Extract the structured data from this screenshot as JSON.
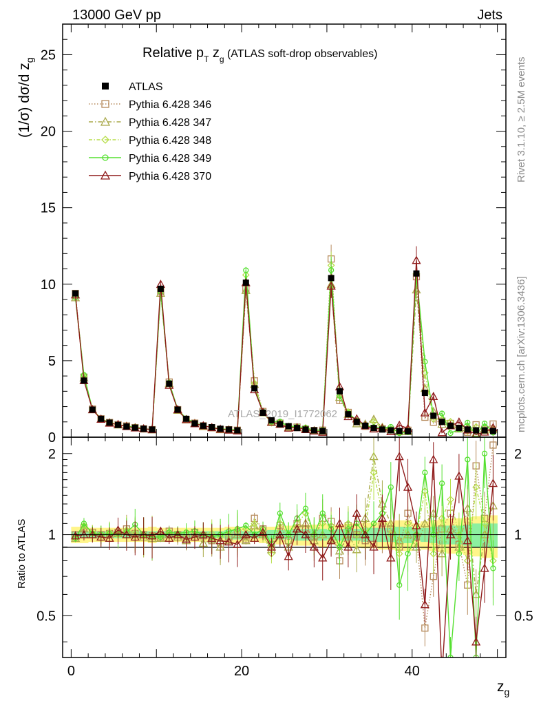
{
  "chart_data": {
    "type": "line",
    "header_left": "13000 GeV pp",
    "header_right": "Jets",
    "title": {
      "pre": "Relative p",
      "sub_t": "T",
      "mid": " z",
      "sub_g": "g",
      "post": " (ATLAS soft-drop observables)"
    },
    "ylabel": {
      "main": "(1/σ) dσ/d z",
      "sub": "g"
    },
    "ylabel_ratio": "Ratio to ATLAS",
    "xlabel": {
      "main": "z",
      "sub": "g"
    },
    "watermark": "ATLAS_2019_I1772062",
    "side_text_top": "Rivet 3.1.10, ≥ 2.5M events",
    "side_text_bottom": "mcplots.cern.ch [arXiv:1306.3436]",
    "xlim": [
      -1,
      51
    ],
    "ylim_main": [
      0,
      27
    ],
    "ylim_ratio": [
      0.35,
      2.3
    ],
    "x_ticks": [
      "0",
      "20",
      "40"
    ],
    "y_ticks_main": [
      "0",
      "5",
      "10",
      "15",
      "20",
      "25"
    ],
    "y_ticks_ratio": [
      "0.5",
      "1",
      "2"
    ],
    "data": {
      "name": "ATLAS",
      "x": [
        0.5,
        1.5,
        2.5,
        3.5,
        4.5,
        5.5,
        6.5,
        7.5,
        8.5,
        9.5,
        10.5,
        11.5,
        12.5,
        13.5,
        14.5,
        15.5,
        16.5,
        17.5,
        18.5,
        19.5,
        20.5,
        21.5,
        22.5,
        23.5,
        24.5,
        25.5,
        26.5,
        27.5,
        28.5,
        29.5,
        30.5,
        31.5,
        32.5,
        33.5,
        34.5,
        35.5,
        36.5,
        37.5,
        38.5,
        39.5,
        40.5,
        41.5,
        42.5,
        43.5,
        44.5,
        45.5,
        46.5,
        47.5,
        48.5,
        49.5
      ],
      "y": [
        9.4,
        3.7,
        1.8,
        1.2,
        0.95,
        0.8,
        0.7,
        0.62,
        0.55,
        0.5,
        9.7,
        3.5,
        1.8,
        1.2,
        0.9,
        0.75,
        0.65,
        0.55,
        0.5,
        0.45,
        10.1,
        3.2,
        1.6,
        1.1,
        0.85,
        0.72,
        0.6,
        0.5,
        0.45,
        0.4,
        10.4,
        3.0,
        1.5,
        1.0,
        0.75,
        0.6,
        0.5,
        0.45,
        0.4,
        0.38,
        10.7,
        2.9,
        1.4,
        1.0,
        0.75,
        0.6,
        0.5,
        0.45,
        0.45,
        0.4
      ],
      "band_stat": [
        0.03,
        0.03,
        0.03,
        0.03,
        0.03,
        0.03,
        0.03,
        0.03,
        0.03,
        0.03,
        0.03,
        0.03,
        0.03,
        0.03,
        0.03,
        0.03,
        0.03,
        0.03,
        0.04,
        0.04,
        0.03,
        0.03,
        0.03,
        0.04,
        0.04,
        0.04,
        0.05,
        0.05,
        0.05,
        0.05,
        0.04,
        0.05,
        0.05,
        0.05,
        0.06,
        0.06,
        0.06,
        0.06,
        0.07,
        0.07,
        0.05,
        0.06,
        0.07,
        0.08,
        0.08,
        0.08,
        0.09,
        0.1,
        0.1,
        0.1
      ],
      "band_tot": [
        0.07,
        0.07,
        0.06,
        0.06,
        0.06,
        0.06,
        0.06,
        0.06,
        0.06,
        0.07,
        0.06,
        0.06,
        0.06,
        0.06,
        0.06,
        0.06,
        0.06,
        0.06,
        0.07,
        0.07,
        0.06,
        0.06,
        0.07,
        0.07,
        0.08,
        0.08,
        0.09,
        0.09,
        0.09,
        0.1,
        0.08,
        0.09,
        0.1,
        0.1,
        0.11,
        0.11,
        0.12,
        0.12,
        0.13,
        0.13,
        0.1,
        0.12,
        0.13,
        0.14,
        0.15,
        0.15,
        0.16,
        0.17,
        0.18,
        0.18
      ]
    },
    "series": [
      {
        "name": "Pythia 6.428 346",
        "color": "#b5895a",
        "dash": "1.5,2.5",
        "marker": "square",
        "ratio": [
          1.0,
          1.06,
          1.02,
          1.0,
          1.01,
          1.02,
          1.05,
          1.01,
          1.0,
          0.99,
          0.98,
          1.03,
          1.0,
          0.97,
          1.02,
          0.99,
          0.95,
          0.92,
          0.98,
          1.02,
          0.96,
          1.15,
          1.05,
          0.92,
          1.08,
          0.95,
          1.1,
          1.05,
          0.98,
          1.15,
          1.12,
          0.8,
          1.08,
          1.0,
          0.95,
          0.92,
          1.1,
          1.05,
          0.9,
          1.2,
          0.98,
          0.45,
          0.7,
          1.05,
          1.2,
          0.92,
          0.65,
          1.8,
          1.15,
          2.15
        ]
      },
      {
        "name": "Pythia 6.428 347",
        "color": "#a9a84a",
        "dash": "6,3,1.5,3",
        "marker": "triangle",
        "ratio": [
          0.97,
          1.05,
          1.0,
          0.98,
          1.0,
          1.01,
          1.03,
          1.0,
          0.98,
          0.97,
          0.97,
          1.0,
          0.98,
          0.95,
          1.0,
          0.93,
          0.96,
          0.9,
          0.95,
          1.0,
          0.95,
          1.08,
          1.0,
          0.88,
          1.0,
          0.9,
          1.05,
          1.1,
          0.95,
          1.0,
          0.96,
          0.87,
          1.0,
          0.88,
          1.15,
          1.95,
          1.3,
          1.1,
          0.95,
          1.0,
          0.9,
          1.1,
          1.2,
          0.85,
          1.05,
          0.9,
          1.25,
          0.6,
          1.0,
          1.28
        ]
      },
      {
        "name": "Pythia 6.428 348",
        "color": "#b7de4a",
        "dash": "5,2.5,1.5,2.5",
        "marker": "diamond",
        "ratio": [
          0.98,
          1.08,
          1.02,
          1.0,
          1.02,
          1.0,
          1.04,
          1.02,
          0.99,
          1.0,
          1.0,
          1.02,
          1.0,
          1.0,
          1.03,
          1.0,
          1.01,
          0.98,
          1.0,
          1.04,
          1.05,
          1.1,
          1.0,
          0.85,
          1.1,
          1.0,
          1.1,
          1.2,
          1.0,
          1.1,
          1.08,
          0.9,
          1.1,
          1.0,
          1.05,
          1.7,
          1.2,
          1.0,
          0.85,
          1.1,
          1.0,
          1.45,
          0.85,
          1.15,
          1.35,
          1.0,
          0.8,
          1.5,
          1.1,
          0.8
        ]
      },
      {
        "name": "Pythia 6.428 349",
        "color": "#55e030",
        "dash": "",
        "marker": "circle",
        "ratio": [
          0.97,
          1.1,
          1.01,
          1.0,
          1.01,
          1.01,
          1.02,
          1.09,
          1.0,
          0.98,
          0.98,
          1.02,
          1.01,
          1.02,
          1.03,
          1.0,
          0.98,
          1.0,
          1.03,
          1.05,
          1.08,
          1.0,
          1.05,
          0.92,
          1.2,
          1.0,
          1.15,
          1.25,
          1.0,
          1.2,
          1.05,
          0.9,
          1.05,
          1.1,
          1.0,
          1.1,
          1.2,
          1.5,
          0.65,
          0.85,
          1.0,
          1.7,
          1.0,
          1.55,
          0.35,
          0.85,
          1.9,
          0.35,
          2.0,
          0.75
        ]
      },
      {
        "name": "Pythia 6.428 370",
        "color": "#8f1a1a",
        "dash": "",
        "marker": "triangle",
        "ratio": [
          0.99,
          1.0,
          1.0,
          0.98,
          0.97,
          1.04,
          1.0,
          0.98,
          1.0,
          0.99,
          1.03,
          0.97,
          1.0,
          0.96,
          0.98,
          1.0,
          0.97,
          0.95,
          0.94,
          0.92,
          1.0,
          0.97,
          1.02,
          0.9,
          1.0,
          0.83,
          1.05,
          1.0,
          0.9,
          0.82,
          0.95,
          1.1,
          0.9,
          1.2,
          1.0,
          0.9,
          1.15,
          0.82,
          1.95,
          1.5,
          1.08,
          0.55,
          1.9,
          0.3,
          1.0,
          1.65,
          0.95,
          0.4,
          0.75,
          1.55
        ]
      }
    ]
  }
}
